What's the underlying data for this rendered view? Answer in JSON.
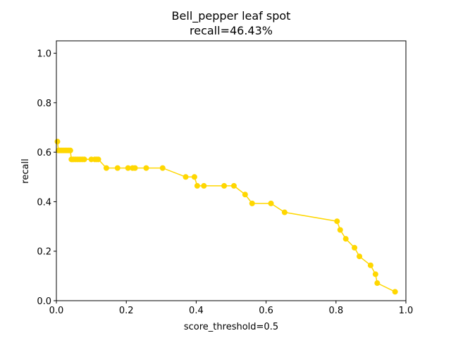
{
  "chart_data": {
    "type": "line",
    "title": "Bell_pepper leaf spot",
    "subtitle": "recall=46.43%",
    "xlabel": "score_threshold=0.5",
    "ylabel": "recall",
    "xlim": [
      0.0,
      1.0
    ],
    "ylim": [
      0.0,
      1.05
    ],
    "xticks": [
      "0.0",
      "0.2",
      "0.4",
      "0.6",
      "0.8",
      "1.0"
    ],
    "yticks": [
      "0.0",
      "0.2",
      "0.4",
      "0.6",
      "0.8",
      "1.0"
    ],
    "grid": false,
    "series": [
      {
        "color": "#FFD700",
        "marker": "circle",
        "x": [
          0.003,
          0.006,
          0.01,
          0.015,
          0.02,
          0.025,
          0.03,
          0.035,
          0.04,
          0.043,
          0.046,
          0.05,
          0.055,
          0.06,
          0.065,
          0.07,
          0.075,
          0.08,
          0.1,
          0.11,
          0.115,
          0.12,
          0.143,
          0.175,
          0.205,
          0.218,
          0.225,
          0.257,
          0.304,
          0.37,
          0.395,
          0.403,
          0.422,
          0.48,
          0.508,
          0.54,
          0.56,
          0.614,
          0.653,
          0.803,
          0.812,
          0.828,
          0.853,
          0.867,
          0.899,
          0.913,
          0.918,
          0.969
        ],
        "y": [
          0.643,
          0.607,
          0.607,
          0.607,
          0.607,
          0.607,
          0.607,
          0.607,
          0.607,
          0.571,
          0.571,
          0.571,
          0.571,
          0.571,
          0.571,
          0.571,
          0.571,
          0.571,
          0.571,
          0.571,
          0.571,
          0.571,
          0.536,
          0.536,
          0.536,
          0.536,
          0.536,
          0.536,
          0.536,
          0.5,
          0.5,
          0.464,
          0.464,
          0.464,
          0.464,
          0.429,
          0.393,
          0.393,
          0.357,
          0.321,
          0.286,
          0.25,
          0.214,
          0.179,
          0.143,
          0.107,
          0.071,
          0.036
        ]
      }
    ]
  }
}
